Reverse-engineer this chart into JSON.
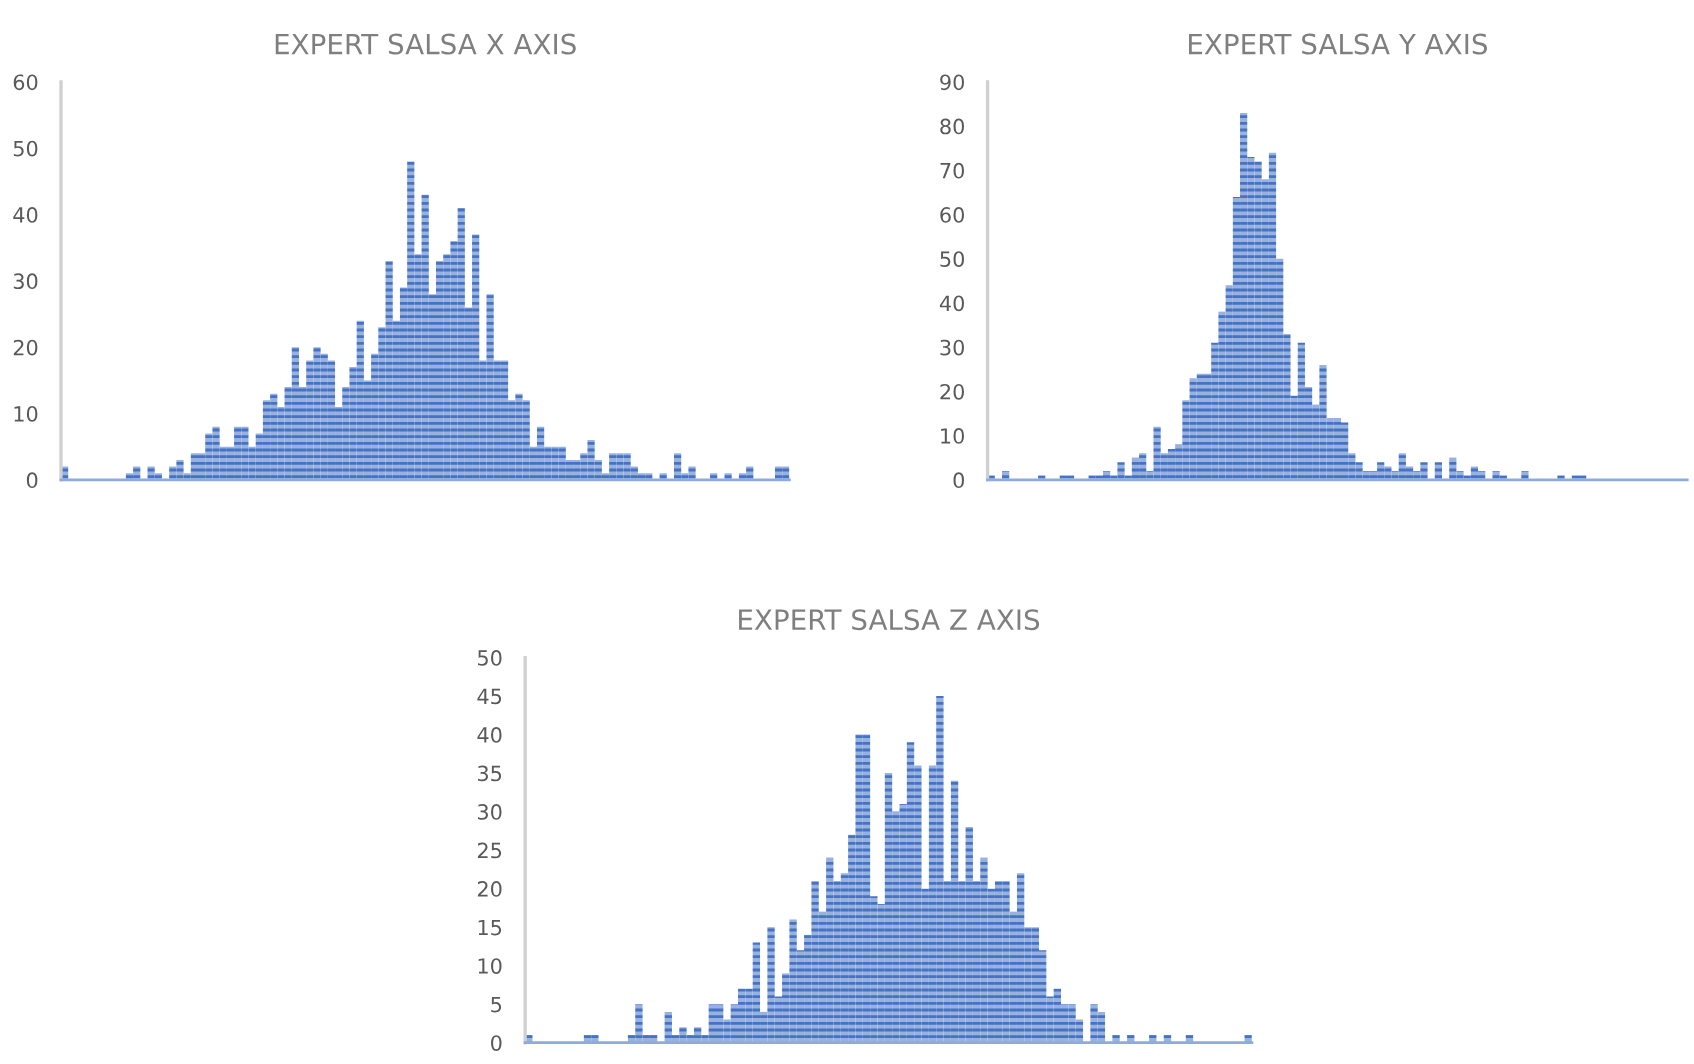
{
  "chart_data": [
    {
      "type": "bar",
      "title": "EXPERT SALSA X AXIS",
      "tick_labels": "y",
      "grid": false,
      "categories": [
        null,
        null,
        null,
        null,
        null,
        null,
        null,
        null,
        null,
        null,
        null,
        null,
        null,
        null,
        null,
        null,
        null,
        null,
        null,
        null,
        null,
        null,
        null,
        null,
        null,
        null,
        null,
        null,
        null,
        null,
        null,
        null,
        null,
        null,
        null,
        null,
        null,
        null,
        null,
        null,
        null,
        null,
        null,
        null,
        null,
        null,
        null,
        null,
        null,
        null,
        null,
        null,
        null,
        null,
        null,
        null,
        null,
        null,
        null,
        null,
        null,
        null,
        null,
        null,
        null,
        null,
        null,
        null,
        null,
        null,
        null,
        null,
        null,
        null,
        null,
        null,
        null,
        null,
        null,
        null,
        null,
        null,
        null,
        null,
        null,
        null,
        null,
        null,
        null,
        null,
        null,
        null,
        null,
        null,
        null,
        null,
        null,
        null,
        null,
        null,
        null
      ],
      "values": [
        2,
        0,
        0,
        0,
        0,
        0,
        0,
        0,
        0,
        1,
        2,
        0,
        2,
        1,
        0,
        2,
        3,
        1,
        4,
        4,
        7,
        8,
        5,
        5,
        8,
        8,
        5,
        7,
        12,
        13,
        11,
        14,
        20,
        14,
        18,
        20,
        19,
        18,
        11,
        14,
        17,
        24,
        15,
        19,
        23,
        33,
        24,
        29,
        48,
        34,
        43,
        28,
        33,
        34,
        36,
        41,
        26,
        37,
        18,
        28,
        18,
        18,
        12,
        13,
        12,
        5,
        8,
        5,
        5,
        5,
        3,
        3,
        4,
        6,
        3,
        1,
        4,
        4,
        4,
        2,
        1,
        1,
        0,
        1,
        0,
        4,
        1,
        2,
        0,
        0,
        1,
        0,
        1,
        0,
        1,
        2,
        0,
        0,
        0,
        2,
        2
      ],
      "color": "#4472c4",
      "ylim": [
        0,
        60
      ],
      "yticks": [
        0,
        10,
        20,
        30,
        40,
        50,
        60
      ]
    },
    {
      "type": "bar",
      "title": "EXPERT SALSA Y AXIS",
      "tick_labels": "y",
      "grid": false,
      "categories": [
        null,
        null,
        null,
        null,
        null,
        null,
        null,
        null,
        null,
        null,
        null,
        null,
        null,
        null,
        null,
        null,
        null,
        null,
        null,
        null,
        null,
        null,
        null,
        null,
        null,
        null,
        null,
        null,
        null,
        null,
        null,
        null,
        null,
        null,
        null,
        null,
        null,
        null,
        null,
        null,
        null,
        null,
        null,
        null,
        null,
        null,
        null,
        null,
        null,
        null,
        null,
        null,
        null,
        null,
        null,
        null,
        null,
        null,
        null,
        null,
        null,
        null,
        null,
        null,
        null,
        null,
        null,
        null,
        null,
        null,
        null,
        null,
        null,
        null,
        null,
        null,
        null,
        null,
        null,
        null,
        null,
        null,
        null,
        null,
        null,
        null,
        null,
        null,
        null,
        null,
        null,
        null,
        null,
        null,
        null,
        null,
        null
      ],
      "values": [
        1,
        0,
        2,
        0,
        0,
        0,
        0,
        1,
        0,
        0,
        1,
        1,
        0,
        0,
        1,
        1,
        2,
        1,
        4,
        1,
        5,
        6,
        2,
        12,
        6,
        7,
        8,
        18,
        23,
        24,
        24,
        31,
        38,
        44,
        64,
        83,
        73,
        72,
        68,
        74,
        50,
        33,
        19,
        31,
        21,
        17,
        26,
        14,
        14,
        13,
        6,
        4,
        2,
        2,
        4,
        3,
        2,
        6,
        3,
        2,
        4,
        0,
        4,
        0,
        5,
        2,
        1,
        3,
        2,
        0,
        2,
        1,
        0,
        0,
        2,
        0,
        0,
        0,
        0,
        1,
        0,
        1,
        1,
        0,
        0,
        0,
        0,
        0,
        0,
        0,
        0,
        0,
        0,
        0,
        0,
        0,
        0
      ],
      "color": "#4472c4",
      "ylim": [
        0,
        90
      ],
      "yticks": [
        0,
        10,
        20,
        30,
        40,
        50,
        60,
        70,
        80,
        90
      ]
    },
    {
      "type": "bar",
      "title": "EXPERT SALSA Z AXIS",
      "tick_labels": "y",
      "grid": false,
      "categories": [
        null,
        null,
        null,
        null,
        null,
        null,
        null,
        null,
        null,
        null,
        null,
        null,
        null,
        null,
        null,
        null,
        null,
        null,
        null,
        null,
        null,
        null,
        null,
        null,
        null,
        null,
        null,
        null,
        null,
        null,
        null,
        null,
        null,
        null,
        null,
        null,
        null,
        null,
        null,
        null,
        null,
        null,
        null,
        null,
        null,
        null,
        null,
        null,
        null,
        null,
        null,
        null,
        null,
        null,
        null,
        null,
        null,
        null,
        null,
        null,
        null,
        null,
        null,
        null,
        null,
        null,
        null,
        null,
        null,
        null,
        null,
        null,
        null,
        null,
        null,
        null,
        null,
        null,
        null,
        null,
        null,
        null,
        null,
        null,
        null,
        null,
        null,
        null,
        null,
        null,
        null,
        null,
        null,
        null,
        null,
        null,
        null,
        null,
        null
      ],
      "values": [
        1,
        0,
        0,
        0,
        0,
        0,
        0,
        0,
        1,
        1,
        0,
        0,
        0,
        0,
        1,
        5,
        1,
        1,
        0,
        4,
        1,
        2,
        1,
        2,
        1,
        5,
        5,
        3,
        5,
        7,
        7,
        13,
        4,
        15,
        6,
        9,
        16,
        12,
        14,
        21,
        17,
        24,
        21,
        22,
        27,
        40,
        40,
        19,
        18,
        35,
        30,
        31,
        39,
        36,
        20,
        36,
        45,
        21,
        34,
        21,
        28,
        21,
        24,
        20,
        21,
        21,
        17,
        22,
        15,
        15,
        12,
        6,
        7,
        5,
        5,
        3,
        0,
        5,
        4,
        0,
        1,
        0,
        1,
        0,
        0,
        1,
        0,
        1,
        0,
        0,
        1,
        0,
        0,
        0,
        0,
        0,
        0,
        0,
        1
      ],
      "color": "#4472c4",
      "ylim": [
        0,
        50
      ],
      "yticks": [
        0,
        5,
        10,
        15,
        20,
        25,
        30,
        35,
        40,
        45,
        50
      ]
    }
  ]
}
